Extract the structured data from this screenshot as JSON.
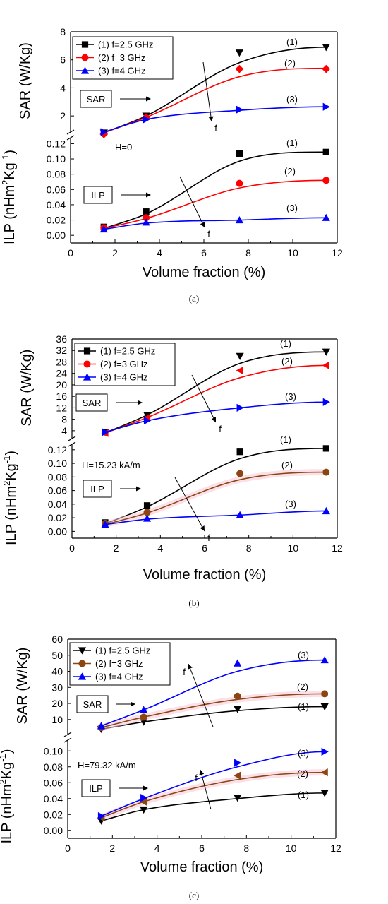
{
  "chart_data": [
    {
      "type": "scatter",
      "panel_label": "(a)",
      "field_label": "H=0",
      "xlabel": "Volume fraction (%)",
      "xlim": [
        0,
        12
      ],
      "xticks": [
        0,
        2,
        4,
        6,
        8,
        10,
        12
      ],
      "sar": {
        "label": "SAR (W/Kg)",
        "tag": "SAR",
        "ylim": [
          1,
          8
        ],
        "yticks": [
          2,
          4,
          6,
          8
        ],
        "curve_labels": [
          "(1)",
          "(2)",
          "(3)"
        ]
      },
      "ilp": {
        "label_main": "ILP (nHm",
        "label_sup1": "2",
        "label_mid": "Kg",
        "label_sup2": "-1",
        "label_end": ")",
        "tag": "ILP",
        "ylim": [
          -0.01,
          0.125
        ],
        "yticks": [
          0.0,
          0.02,
          0.04,
          0.06,
          0.08,
          0.1,
          0.12
        ],
        "tick_labels": [
          "0.00",
          "0.02",
          "0.04",
          "0.06",
          "0.08",
          "0.10",
          "0.12"
        ],
        "curve_labels": [
          "(1)",
          "(2)",
          "(3)"
        ]
      },
      "arrow_letter": "f",
      "arrow_direction": "down",
      "legend_placement": "top-left",
      "series": [
        {
          "name": "(1) f=2.5 GHz",
          "color": "#000000",
          "sar_marker": "triangle-down",
          "ilp_marker": "square",
          "x": [
            1.5,
            3.4,
            7.6,
            11.5
          ],
          "sar": [
            0.8,
            2.0,
            6.5,
            6.9
          ],
          "ilp": [
            0.011,
            0.031,
            0.107,
            0.109
          ],
          "sar_curve": [
            0.8,
            2.0,
            5.8,
            6.9
          ],
          "ilp_curve": [
            0.009,
            0.028,
            0.097,
            0.109
          ]
        },
        {
          "name": "(2) f=3 GHz",
          "color": "#ff0000",
          "sar_marker": "diamond",
          "ilp_marker": "circle",
          "x": [
            1.5,
            3.4,
            7.6,
            11.5
          ],
          "sar": [
            0.7,
            1.9,
            5.35,
            5.35
          ],
          "ilp": [
            0.01,
            0.023,
            0.068,
            0.072
          ],
          "sar_curve": [
            0.8,
            1.9,
            4.8,
            5.4
          ],
          "ilp_curve": [
            0.009,
            0.022,
            0.062,
            0.072
          ]
        },
        {
          "name": "(3) f=4 GHz",
          "color": "#0000ff",
          "sar_marker": "triangle-right",
          "ilp_marker": "triangle-up",
          "x": [
            1.5,
            3.4,
            7.6,
            11.5
          ],
          "sar": [
            0.85,
            1.75,
            2.45,
            2.65
          ],
          "ilp": [
            0.008,
            0.017,
            0.02,
            0.023
          ],
          "sar_curve": [
            0.85,
            1.75,
            2.4,
            2.65
          ],
          "ilp_curve": [
            0.008,
            0.016,
            0.02,
            0.023
          ]
        }
      ]
    },
    {
      "type": "scatter",
      "panel_label": "(b)",
      "field_label": "H=15.23 kA/m",
      "xlabel": "Volume fraction (%)",
      "xlim": [
        0,
        12
      ],
      "xticks": [
        0,
        2,
        4,
        6,
        8,
        10,
        12
      ],
      "sar": {
        "label": "SAR (W/Kg)",
        "tag": "SAR",
        "ylim": [
          2,
          36
        ],
        "yticks": [
          4,
          8,
          12,
          16,
          20,
          24,
          28,
          32,
          36
        ],
        "curve_labels": [
          "(1)",
          "(2)",
          "(3)"
        ]
      },
      "ilp": {
        "label_main": "ILP (nHm",
        "label_sup1": "2",
        "label_mid": "Kg",
        "label_sup2": "-1",
        "label_end": ")",
        "tag": "ILP",
        "ylim": [
          -0.01,
          0.125
        ],
        "yticks": [
          0.0,
          0.02,
          0.04,
          0.06,
          0.08,
          0.1,
          0.12
        ],
        "tick_labels": [
          "0.00",
          "0.02",
          "0.04",
          "0.06",
          "0.08",
          "0.10",
          "0.12"
        ],
        "curve_labels": [
          "(1)",
          "(2)",
          "(3)"
        ]
      },
      "arrow_letter": "f",
      "arrow_direction": "down",
      "legend_placement": "top-left",
      "series": [
        {
          "name": "(1) f=2.5 GHz",
          "color": "#000000",
          "sar_marker": "triangle-down",
          "ilp_marker": "square",
          "x": [
            1.5,
            3.4,
            7.6,
            11.5
          ],
          "sar": [
            3.5,
            9.5,
            30,
            31.5
          ],
          "ilp": [
            0.013,
            0.038,
            0.117,
            0.122
          ],
          "sar_curve": [
            3.2,
            9.5,
            27.5,
            31.5
          ],
          "ilp_curve": [
            0.011,
            0.036,
            0.107,
            0.122
          ],
          "halo": false
        },
        {
          "name": "(2) f=3 GHz",
          "color": "#ff0000",
          "ilp_color": "#8b4513",
          "sar_marker": "triangle-left",
          "ilp_marker": "circle",
          "x": [
            1.5,
            3.4,
            7.6,
            11.5
          ],
          "sar": [
            3.2,
            8.5,
            25,
            26.8
          ],
          "ilp": [
            0.012,
            0.028,
            0.085,
            0.087
          ],
          "sar_curve": [
            3.2,
            8.6,
            22.5,
            26.8
          ],
          "ilp_curve": [
            0.01,
            0.027,
            0.076,
            0.087
          ],
          "halo": true
        },
        {
          "name": "(3) f=4 GHz",
          "color": "#0000ff",
          "sar_marker": "triangle-right",
          "ilp_marker": "triangle-up",
          "x": [
            1.5,
            3.4,
            7.6,
            11.5
          ],
          "sar": [
            3.5,
            7.5,
            12,
            14
          ],
          "ilp": [
            0.01,
            0.019,
            0.024,
            0.03
          ],
          "sar_curve": [
            3.5,
            7.5,
            12,
            14
          ],
          "ilp_curve": [
            0.01,
            0.018,
            0.024,
            0.03
          ],
          "halo": false
        }
      ]
    },
    {
      "type": "scatter",
      "panel_label": "(c)",
      "field_label": "H=79.32 kA/m",
      "xlabel": "Volume fraction (%)",
      "xlim": [
        0,
        12
      ],
      "xticks": [
        0,
        2,
        4,
        6,
        8,
        10,
        12
      ],
      "sar": {
        "label": "SAR (W/Kg)",
        "tag": "SAR",
        "ylim": [
          2,
          60
        ],
        "yticks": [
          10,
          20,
          30,
          40,
          50,
          60
        ],
        "curve_labels": [
          "(3)",
          "(2)",
          "(1)"
        ]
      },
      "ilp": {
        "label_main": "ILP (nHm",
        "label_sup1": "2",
        "label_mid": "Kg",
        "label_sup2": "-1",
        "label_end": ")",
        "tag": "ILP",
        "ylim": [
          -0.01,
          0.11
        ],
        "yticks": [
          0.0,
          0.02,
          0.04,
          0.06,
          0.08,
          0.1
        ],
        "tick_labels": [
          "0.00",
          "0.02",
          "0.04",
          "0.06",
          "0.08",
          "0.10"
        ],
        "curve_labels": [
          "(3)",
          "(2)",
          "(1)"
        ]
      },
      "arrow_letter": "f",
      "arrow_direction": "up",
      "legend_placement": "top-left",
      "series": [
        {
          "name": "(1) f=2.5 GHz",
          "color": "#000000",
          "sar_marker": "triangle-down",
          "ilp_marker": "triangle-down",
          "x": [
            1.5,
            3.4,
            7.6,
            11.5
          ],
          "sar": [
            4,
            8.5,
            16.5,
            18
          ],
          "ilp": [
            0.012,
            0.026,
            0.041,
            0.047
          ],
          "sar_curve": [
            4,
            8.5,
            15.5,
            18
          ],
          "ilp_curve": [
            0.012,
            0.026,
            0.04,
            0.047
          ],
          "halo": false
        },
        {
          "name": "(2) f=3 GHz",
          "color": "#8b4513",
          "sar_marker": "circle",
          "ilp_marker": "triangle-left",
          "x": [
            1.5,
            3.4,
            7.6,
            11.5
          ],
          "sar": [
            5,
            11.5,
            24.5,
            26
          ],
          "ilp": [
            0.016,
            0.036,
            0.069,
            0.073
          ],
          "sar_curve": [
            5,
            11.5,
            22.5,
            26
          ],
          "ilp_curve": [
            0.016,
            0.036,
            0.064,
            0.073
          ],
          "halo": true
        },
        {
          "name": "(3) f=4 GHz",
          "color": "#0000ff",
          "sar_marker": "triangle-up",
          "ilp_marker": "triangle-right",
          "x": [
            1.5,
            3.4,
            7.6,
            11.5
          ],
          "sar": [
            6,
            16,
            45,
            47
          ],
          "ilp": [
            0.018,
            0.041,
            0.085,
            0.099
          ],
          "sar_curve": [
            6,
            16,
            40,
            47
          ],
          "ilp_curve": [
            0.018,
            0.04,
            0.08,
            0.099
          ],
          "halo": false
        }
      ]
    }
  ]
}
